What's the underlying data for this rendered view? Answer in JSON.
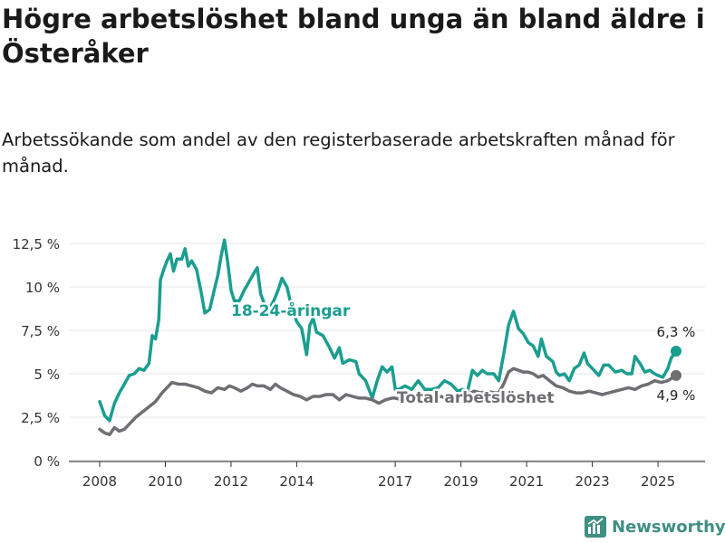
{
  "title": "Högre arbetslöshet bland unga än bland äldre i Österåker",
  "subtitle": "Arbetssökande som andel av den registerbaserade arbetskraften månad för månad.",
  "brand": "Newsworthy",
  "colors": {
    "young": "#1a9e8f",
    "total": "#6f6e72",
    "grid": "#e6e6e6",
    "axis": "#333333",
    "brand": "#3f8f82"
  },
  "chart_data": {
    "type": "line",
    "x_unit": "year",
    "ylim": [
      0,
      13
    ],
    "grid": true,
    "y_ticks": [
      {
        "value": 0,
        "label": "0 %"
      },
      {
        "value": 2.5,
        "label": "2,5 %"
      },
      {
        "value": 5,
        "label": "5 %"
      },
      {
        "value": 7.5,
        "label": "7,5 %"
      },
      {
        "value": 10,
        "label": "10 %"
      },
      {
        "value": 12.5,
        "label": "12,5 %"
      }
    ],
    "x_ticks": [
      {
        "value": 2008,
        "label": "2008"
      },
      {
        "value": 2010,
        "label": "2010"
      },
      {
        "value": 2012,
        "label": "2012"
      },
      {
        "value": 2014,
        "label": "2014"
      },
      {
        "value": 2017,
        "label": "2017"
      },
      {
        "value": 2019,
        "label": "2019"
      },
      {
        "value": 2021,
        "label": "2021"
      },
      {
        "value": 2023,
        "label": "2023"
      },
      {
        "value": 2025,
        "label": "2025"
      }
    ],
    "series": [
      {
        "name": "18-24-åringar",
        "color": "#1a9e8f",
        "last_value_label": "6,3 %",
        "points": [
          [
            2008.0,
            3.4
          ],
          [
            2008.15,
            2.6
          ],
          [
            2008.3,
            2.3
          ],
          [
            2008.45,
            3.3
          ],
          [
            2008.6,
            3.9
          ],
          [
            2008.75,
            4.4
          ],
          [
            2008.9,
            4.9
          ],
          [
            2009.05,
            5.0
          ],
          [
            2009.2,
            5.3
          ],
          [
            2009.35,
            5.2
          ],
          [
            2009.5,
            5.6
          ],
          [
            2009.6,
            7.2
          ],
          [
            2009.7,
            7.0
          ],
          [
            2009.8,
            8.1
          ],
          [
            2009.85,
            10.4
          ],
          [
            2009.95,
            11.0
          ],
          [
            2010.05,
            11.5
          ],
          [
            2010.15,
            11.9
          ],
          [
            2010.25,
            10.9
          ],
          [
            2010.35,
            11.6
          ],
          [
            2010.5,
            11.6
          ],
          [
            2010.6,
            12.2
          ],
          [
            2010.7,
            11.2
          ],
          [
            2010.8,
            11.5
          ],
          [
            2010.95,
            11.0
          ],
          [
            2011.1,
            9.6
          ],
          [
            2011.2,
            8.5
          ],
          [
            2011.35,
            8.7
          ],
          [
            2011.5,
            9.9
          ],
          [
            2011.6,
            10.7
          ],
          [
            2011.7,
            11.8
          ],
          [
            2011.8,
            12.7
          ],
          [
            2011.9,
            11.4
          ],
          [
            2012.0,
            9.8
          ],
          [
            2012.1,
            9.2
          ],
          [
            2012.25,
            9.2
          ],
          [
            2012.4,
            9.8
          ],
          [
            2012.55,
            10.3
          ],
          [
            2012.7,
            10.8
          ],
          [
            2012.8,
            11.1
          ],
          [
            2012.9,
            9.6
          ],
          [
            2013.0,
            9.1
          ],
          [
            2013.15,
            8.7
          ],
          [
            2013.3,
            9.2
          ],
          [
            2013.45,
            9.9
          ],
          [
            2013.55,
            10.5
          ],
          [
            2013.7,
            10.0
          ],
          [
            2013.85,
            8.8
          ],
          [
            2014.0,
            8.0
          ],
          [
            2014.15,
            7.6
          ],
          [
            2014.3,
            6.1
          ],
          [
            2014.4,
            7.8
          ],
          [
            2014.5,
            8.2
          ],
          [
            2014.6,
            7.4
          ],
          [
            2014.8,
            7.2
          ],
          [
            2015.0,
            6.5
          ],
          [
            2015.15,
            5.9
          ],
          [
            2015.3,
            6.5
          ],
          [
            2015.4,
            5.6
          ],
          [
            2015.6,
            5.8
          ],
          [
            2015.8,
            5.7
          ],
          [
            2015.9,
            5.0
          ],
          [
            2016.1,
            4.6
          ],
          [
            2016.3,
            3.6
          ],
          [
            2016.45,
            4.6
          ],
          [
            2016.6,
            5.4
          ],
          [
            2016.75,
            5.1
          ],
          [
            2016.9,
            5.4
          ],
          [
            2017.0,
            4.1
          ],
          [
            2017.1,
            4.1
          ],
          [
            2017.3,
            4.3
          ],
          [
            2017.5,
            4.1
          ],
          [
            2017.7,
            4.6
          ],
          [
            2017.9,
            4.1
          ],
          [
            2018.1,
            4.1
          ],
          [
            2018.3,
            4.2
          ],
          [
            2018.5,
            4.6
          ],
          [
            2018.7,
            4.4
          ],
          [
            2018.9,
            4.0
          ],
          [
            2019.05,
            4.1
          ],
          [
            2019.2,
            4.0
          ],
          [
            2019.35,
            5.2
          ],
          [
            2019.5,
            4.9
          ],
          [
            2019.65,
            5.2
          ],
          [
            2019.8,
            5.0
          ],
          [
            2020.0,
            5.0
          ],
          [
            2020.15,
            4.6
          ],
          [
            2020.3,
            6.1
          ],
          [
            2020.45,
            7.8
          ],
          [
            2020.6,
            8.6
          ],
          [
            2020.75,
            7.6
          ],
          [
            2020.9,
            7.3
          ],
          [
            2021.05,
            6.8
          ],
          [
            2021.2,
            6.6
          ],
          [
            2021.35,
            6.0
          ],
          [
            2021.45,
            7.0
          ],
          [
            2021.6,
            6.0
          ],
          [
            2021.8,
            5.7
          ],
          [
            2021.9,
            5.1
          ],
          [
            2022.0,
            4.9
          ],
          [
            2022.15,
            5.0
          ],
          [
            2022.3,
            4.6
          ],
          [
            2022.45,
            5.3
          ],
          [
            2022.6,
            5.5
          ],
          [
            2022.75,
            6.2
          ],
          [
            2022.85,
            5.6
          ],
          [
            2023.0,
            5.3
          ],
          [
            2023.2,
            4.9
          ],
          [
            2023.35,
            5.5
          ],
          [
            2023.5,
            5.5
          ],
          [
            2023.7,
            5.1
          ],
          [
            2023.9,
            5.2
          ],
          [
            2024.05,
            5.0
          ],
          [
            2024.2,
            5.0
          ],
          [
            2024.3,
            6.0
          ],
          [
            2024.45,
            5.6
          ],
          [
            2024.6,
            5.1
          ],
          [
            2024.75,
            5.2
          ],
          [
            2024.9,
            5.0
          ],
          [
            2025.0,
            4.9
          ],
          [
            2025.15,
            4.8
          ],
          [
            2025.3,
            5.3
          ],
          [
            2025.4,
            5.9
          ],
          [
            2025.55,
            6.3
          ]
        ]
      },
      {
        "name": "Total arbetslöshet",
        "color": "#6f6e72",
        "last_value_label": "4,9 %",
        "points": [
          [
            2008.0,
            1.8
          ],
          [
            2008.15,
            1.6
          ],
          [
            2008.3,
            1.5
          ],
          [
            2008.45,
            1.9
          ],
          [
            2008.6,
            1.7
          ],
          [
            2008.75,
            1.8
          ],
          [
            2008.9,
            2.1
          ],
          [
            2009.1,
            2.5
          ],
          [
            2009.3,
            2.8
          ],
          [
            2009.5,
            3.1
          ],
          [
            2009.7,
            3.4
          ],
          [
            2009.9,
            3.9
          ],
          [
            2010.1,
            4.3
          ],
          [
            2010.2,
            4.5
          ],
          [
            2010.4,
            4.4
          ],
          [
            2010.6,
            4.4
          ],
          [
            2010.8,
            4.3
          ],
          [
            2011.0,
            4.2
          ],
          [
            2011.2,
            4.0
          ],
          [
            2011.4,
            3.9
          ],
          [
            2011.6,
            4.2
          ],
          [
            2011.8,
            4.1
          ],
          [
            2011.95,
            4.3
          ],
          [
            2012.1,
            4.2
          ],
          [
            2012.3,
            4.0
          ],
          [
            2012.5,
            4.2
          ],
          [
            2012.65,
            4.4
          ],
          [
            2012.8,
            4.3
          ],
          [
            2013.0,
            4.3
          ],
          [
            2013.2,
            4.1
          ],
          [
            2013.35,
            4.4
          ],
          [
            2013.5,
            4.2
          ],
          [
            2013.7,
            4.0
          ],
          [
            2013.9,
            3.8
          ],
          [
            2014.1,
            3.7
          ],
          [
            2014.3,
            3.5
          ],
          [
            2014.5,
            3.7
          ],
          [
            2014.7,
            3.7
          ],
          [
            2014.9,
            3.8
          ],
          [
            2015.1,
            3.8
          ],
          [
            2015.3,
            3.5
          ],
          [
            2015.5,
            3.8
          ],
          [
            2015.7,
            3.7
          ],
          [
            2015.9,
            3.6
          ],
          [
            2016.1,
            3.6
          ],
          [
            2016.3,
            3.5
          ],
          [
            2016.5,
            3.3
          ],
          [
            2016.7,
            3.5
          ],
          [
            2016.9,
            3.6
          ],
          [
            2017.0,
            3.6
          ],
          [
            2017.2,
            3.5
          ],
          [
            2017.4,
            3.5
          ],
          [
            2017.6,
            3.4
          ],
          [
            2017.8,
            3.6
          ],
          [
            2018.0,
            3.5
          ],
          [
            2018.2,
            3.6
          ],
          [
            2018.4,
            3.7
          ],
          [
            2018.6,
            3.5
          ],
          [
            2018.8,
            3.6
          ],
          [
            2019.0,
            3.7
          ],
          [
            2019.2,
            3.8
          ],
          [
            2019.4,
            4.0
          ],
          [
            2019.6,
            3.9
          ],
          [
            2019.8,
            4.0
          ],
          [
            2020.0,
            3.9
          ],
          [
            2020.15,
            3.9
          ],
          [
            2020.3,
            4.4
          ],
          [
            2020.45,
            5.1
          ],
          [
            2020.6,
            5.3
          ],
          [
            2020.75,
            5.2
          ],
          [
            2020.9,
            5.1
          ],
          [
            2021.05,
            5.1
          ],
          [
            2021.2,
            5.0
          ],
          [
            2021.35,
            4.8
          ],
          [
            2021.5,
            4.9
          ],
          [
            2021.7,
            4.6
          ],
          [
            2021.9,
            4.3
          ],
          [
            2022.1,
            4.2
          ],
          [
            2022.3,
            4.0
          ],
          [
            2022.5,
            3.9
          ],
          [
            2022.7,
            3.9
          ],
          [
            2022.9,
            4.0
          ],
          [
            2023.1,
            3.9
          ],
          [
            2023.3,
            3.8
          ],
          [
            2023.5,
            3.9
          ],
          [
            2023.7,
            4.0
          ],
          [
            2023.9,
            4.1
          ],
          [
            2024.1,
            4.2
          ],
          [
            2024.3,
            4.1
          ],
          [
            2024.5,
            4.3
          ],
          [
            2024.7,
            4.4
          ],
          [
            2024.9,
            4.6
          ],
          [
            2025.1,
            4.5
          ],
          [
            2025.3,
            4.6
          ],
          [
            2025.55,
            4.9
          ]
        ]
      }
    ]
  }
}
